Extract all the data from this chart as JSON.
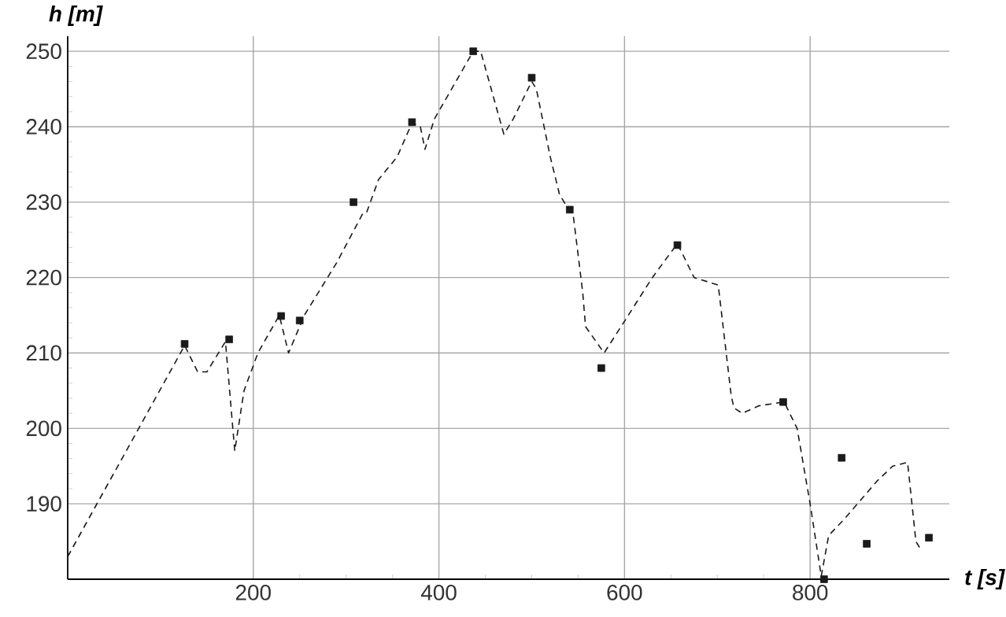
{
  "chart_data": {
    "type": "scatter",
    "xlabel": "t [s]",
    "ylabel": "h [m]",
    "xlim": [
      0,
      950
    ],
    "ylim": [
      180,
      252
    ],
    "xticks": [
      200,
      400,
      600,
      800
    ],
    "yticks": [
      190,
      200,
      210,
      220,
      230,
      240,
      250
    ],
    "grid": true,
    "series": [
      {
        "color": "#1a1a1a",
        "marker": "square",
        "x": [
          126,
          174,
          230,
          250,
          308,
          371,
          437,
          500,
          541,
          575,
          657,
          771,
          815,
          834,
          861,
          928
        ],
        "values": [
          211.2,
          211.8,
          214.9,
          214.3,
          230,
          240.6,
          250,
          246.5,
          229,
          208,
          224.3,
          203.5,
          180,
          196.1,
          184.7,
          185.5
        ]
      },
      {
        "type": "line",
        "color": "#1a1a1a",
        "line_style": "dashed",
        "marker": "none",
        "x": [
          0,
          126,
          140,
          150,
          170,
          180,
          190,
          205,
          228,
          238,
          255,
          290,
          318,
          322,
          335,
          355,
          371,
          380,
          385,
          395,
          437,
          445,
          470,
          480,
          500,
          505,
          520,
          530,
          545,
          555,
          558,
          578,
          601,
          630,
          657,
          675,
          701,
          715,
          718,
          727,
          745,
          772,
          786,
          800,
          812,
          820,
          837,
          872,
          889,
          905,
          914,
          919
        ],
        "values": [
          183,
          211,
          207.5,
          207.5,
          211.5,
          197,
          205,
          210,
          215,
          210,
          215,
          222,
          228.5,
          228.6,
          233,
          236,
          240.5,
          240,
          237,
          241,
          250,
          250,
          239,
          241,
          246,
          245,
          236,
          231,
          228,
          218,
          213.5,
          210,
          214.4,
          220,
          224.5,
          220,
          219,
          204.3,
          202.7,
          202,
          203,
          203.5,
          200,
          190,
          180.4,
          185.8,
          188,
          193,
          195,
          195.5,
          185,
          184
        ]
      }
    ]
  }
}
